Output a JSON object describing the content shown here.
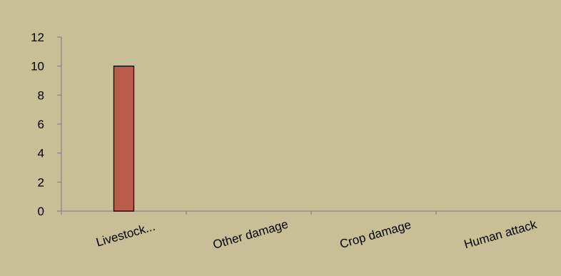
{
  "chart_data": {
    "type": "bar",
    "title": "",
    "xlabel": "",
    "ylabel": "",
    "categories": [
      "Livestock...",
      "Other damage",
      "Crop damage",
      "Human attack"
    ],
    "series": [
      {
        "values": [
          10,
          0,
          0,
          0
        ]
      }
    ],
    "ylim": [
      0,
      12
    ],
    "yticks": [
      0,
      2,
      4,
      6,
      8,
      10,
      12
    ],
    "grid": false,
    "legend": "none"
  },
  "colors": {
    "background": "#c8bf96",
    "bar_fill": "#b95c4a",
    "bar_stroke": "#000000",
    "axis": "#8a8a8a"
  }
}
